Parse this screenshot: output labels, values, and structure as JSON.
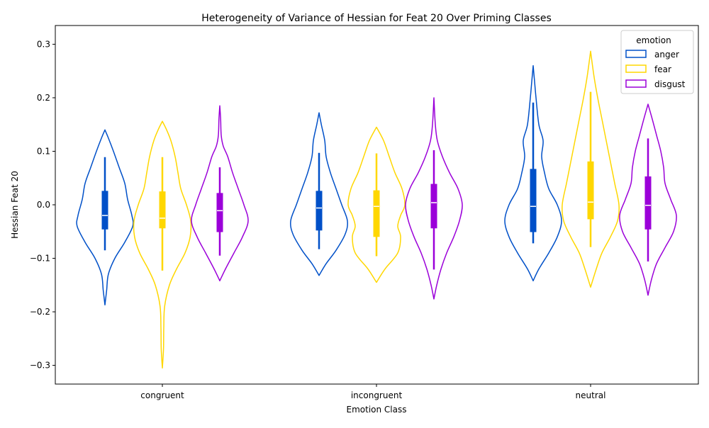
{
  "chart_data": {
    "type": "violin",
    "title": "Heterogeneity of Variance of Hessian for Feat 20 Over Priming Classes",
    "xlabel": "Emotion Class",
    "ylabel": "Hessian Feat 20",
    "categories": [
      "congruent",
      "incongruent",
      "neutral"
    ],
    "ylim": [
      -0.335,
      0.335
    ],
    "yticks": [
      -0.3,
      -0.2,
      -0.1,
      0.0,
      0.1,
      0.2,
      0.3
    ],
    "ytick_labels": [
      "−0.3",
      "−0.2",
      "−0.1",
      "0.0",
      "0.1",
      "0.2",
      "0.3"
    ],
    "grid": false,
    "legend": {
      "title": "emotion",
      "position": "top-right"
    },
    "series": [
      {
        "name": "anger",
        "color": "#0050c8",
        "stats": [
          {
            "category": "congruent",
            "min": -0.187,
            "max": 0.14,
            "whisker_low": -0.085,
            "whisker_high": 0.089,
            "q1": -0.046,
            "median": -0.02,
            "q3": 0.026,
            "profile": [
              [
                -0.187,
                0.0
              ],
              [
                -0.16,
                0.06
              ],
              [
                -0.13,
                0.12
              ],
              [
                -0.1,
                0.35
              ],
              [
                -0.07,
                0.7
              ],
              [
                -0.04,
                0.98
              ],
              [
                -0.02,
                0.95
              ],
              [
                0.01,
                0.8
              ],
              [
                0.04,
                0.7
              ],
              [
                0.07,
                0.5
              ],
              [
                0.1,
                0.3
              ],
              [
                0.125,
                0.12
              ],
              [
                0.14,
                0.0
              ]
            ]
          },
          {
            "category": "incongruent",
            "min": -0.132,
            "max": 0.172,
            "whisker_low": -0.083,
            "whisker_high": 0.097,
            "q1": -0.048,
            "median": -0.006,
            "q3": 0.026,
            "profile": [
              [
                -0.132,
                0.0
              ],
              [
                -0.11,
                0.25
              ],
              [
                -0.085,
                0.6
              ],
              [
                -0.055,
                0.92
              ],
              [
                -0.03,
                1.0
              ],
              [
                0.0,
                0.8
              ],
              [
                0.03,
                0.6
              ],
              [
                0.06,
                0.4
              ],
              [
                0.09,
                0.25
              ],
              [
                0.12,
                0.2
              ],
              [
                0.15,
                0.08
              ],
              [
                0.172,
                0.0
              ]
            ]
          },
          {
            "category": "neutral",
            "min": -0.142,
            "max": 0.26,
            "whisker_low": -0.072,
            "whisker_high": 0.191,
            "q1": -0.051,
            "median": -0.003,
            "q3": 0.067,
            "profile": [
              [
                -0.142,
                0.0
              ],
              [
                -0.12,
                0.2
              ],
              [
                -0.09,
                0.55
              ],
              [
                -0.06,
                0.85
              ],
              [
                -0.03,
                1.0
              ],
              [
                0.0,
                0.85
              ],
              [
                0.03,
                0.55
              ],
              [
                0.06,
                0.4
              ],
              [
                0.09,
                0.3
              ],
              [
                0.12,
                0.35
              ],
              [
                0.15,
                0.2
              ],
              [
                0.2,
                0.1
              ],
              [
                0.23,
                0.05
              ],
              [
                0.26,
                0.0
              ]
            ]
          }
        ]
      },
      {
        "name": "fear",
        "color": "#ffd700",
        "stats": [
          {
            "category": "congruent",
            "min": -0.305,
            "max": 0.156,
            "whisker_low": -0.123,
            "whisker_high": 0.089,
            "q1": -0.044,
            "median": -0.025,
            "q3": 0.025,
            "profile": [
              [
                -0.305,
                0.0
              ],
              [
                -0.27,
                0.04
              ],
              [
                -0.23,
                0.05
              ],
              [
                -0.19,
                0.08
              ],
              [
                -0.15,
                0.25
              ],
              [
                -0.12,
                0.5
              ],
              [
                -0.09,
                0.8
              ],
              [
                -0.06,
                0.98
              ],
              [
                -0.03,
                1.0
              ],
              [
                0.0,
                0.85
              ],
              [
                0.03,
                0.65
              ],
              [
                0.06,
                0.55
              ],
              [
                0.09,
                0.45
              ],
              [
                0.12,
                0.3
              ],
              [
                0.14,
                0.15
              ],
              [
                0.156,
                0.0
              ]
            ]
          },
          {
            "category": "incongruent",
            "min": -0.145,
            "max": 0.145,
            "whisker_low": -0.096,
            "whisker_high": 0.096,
            "q1": -0.06,
            "median": -0.003,
            "q3": 0.027,
            "profile": [
              [
                -0.145,
                0.0
              ],
              [
                -0.12,
                0.3
              ],
              [
                -0.09,
                0.75
              ],
              [
                -0.06,
                0.85
              ],
              [
                -0.04,
                0.75
              ],
              [
                -0.02,
                0.85
              ],
              [
                0.0,
                1.0
              ],
              [
                0.03,
                0.9
              ],
              [
                0.06,
                0.65
              ],
              [
                0.09,
                0.45
              ],
              [
                0.12,
                0.25
              ],
              [
                0.145,
                0.0
              ]
            ]
          },
          {
            "category": "neutral",
            "min": -0.154,
            "max": 0.287,
            "whisker_low": -0.079,
            "whisker_high": 0.211,
            "q1": -0.027,
            "median": 0.005,
            "q3": 0.081,
            "profile": [
              [
                -0.154,
                0.0
              ],
              [
                -0.12,
                0.2
              ],
              [
                -0.09,
                0.4
              ],
              [
                -0.06,
                0.7
              ],
              [
                -0.03,
                0.95
              ],
              [
                0.0,
                1.0
              ],
              [
                0.04,
                0.85
              ],
              [
                0.08,
                0.7
              ],
              [
                0.12,
                0.55
              ],
              [
                0.16,
                0.4
              ],
              [
                0.2,
                0.25
              ],
              [
                0.24,
                0.12
              ],
              [
                0.287,
                0.0
              ]
            ]
          }
        ]
      },
      {
        "name": "disgust",
        "color": "#9b00d9",
        "stats": [
          {
            "category": "congruent",
            "min": -0.142,
            "max": 0.185,
            "whisker_low": -0.095,
            "whisker_high": 0.07,
            "q1": -0.051,
            "median": -0.011,
            "q3": 0.022,
            "profile": [
              [
                -0.142,
                0.0
              ],
              [
                -0.12,
                0.2
              ],
              [
                -0.09,
                0.5
              ],
              [
                -0.06,
                0.8
              ],
              [
                -0.03,
                1.0
              ],
              [
                0.0,
                0.85
              ],
              [
                0.03,
                0.65
              ],
              [
                0.06,
                0.45
              ],
              [
                0.09,
                0.28
              ],
              [
                0.11,
                0.12
              ],
              [
                0.13,
                0.05
              ],
              [
                0.16,
                0.03
              ],
              [
                0.185,
                0.0
              ]
            ]
          },
          {
            "category": "incongruent",
            "min": -0.176,
            "max": 0.2,
            "whisker_low": -0.121,
            "whisker_high": 0.102,
            "q1": -0.044,
            "median": 0.004,
            "q3": 0.039,
            "profile": [
              [
                -0.176,
                0.0
              ],
              [
                -0.15,
                0.1
              ],
              [
                -0.12,
                0.25
              ],
              [
                -0.09,
                0.45
              ],
              [
                -0.06,
                0.7
              ],
              [
                -0.03,
                0.9
              ],
              [
                0.0,
                1.0
              ],
              [
                0.03,
                0.85
              ],
              [
                0.06,
                0.55
              ],
              [
                0.09,
                0.3
              ],
              [
                0.12,
                0.12
              ],
              [
                0.15,
                0.05
              ],
              [
                0.2,
                0.0
              ]
            ]
          },
          {
            "category": "neutral",
            "min": -0.169,
            "max": 0.188,
            "whisker_low": -0.106,
            "whisker_high": 0.124,
            "q1": -0.046,
            "median": -0.001,
            "q3": 0.053,
            "profile": [
              [
                -0.169,
                0.0
              ],
              [
                -0.14,
                0.12
              ],
              [
                -0.11,
                0.3
              ],
              [
                -0.08,
                0.6
              ],
              [
                -0.05,
                0.9
              ],
              [
                -0.02,
                1.0
              ],
              [
                0.01,
                0.8
              ],
              [
                0.04,
                0.6
              ],
              [
                0.07,
                0.55
              ],
              [
                0.1,
                0.45
              ],
              [
                0.13,
                0.3
              ],
              [
                0.16,
                0.15
              ],
              [
                0.188,
                0.0
              ]
            ]
          }
        ]
      }
    ]
  }
}
